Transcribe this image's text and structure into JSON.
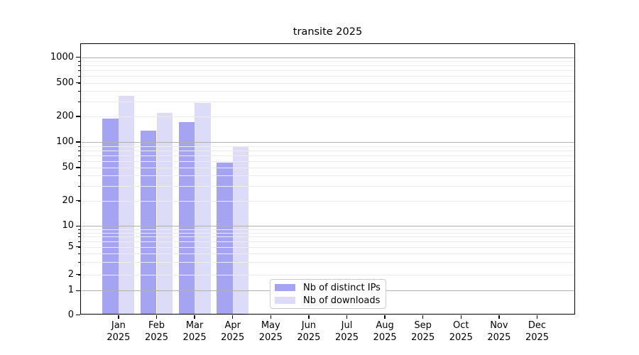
{
  "chart_data": {
    "type": "bar",
    "title": "transite 2025",
    "categories": [
      "Jan",
      "Feb",
      "Mar",
      "Apr",
      "May",
      "Jun",
      "Jul",
      "Aug",
      "Sep",
      "Oct",
      "Nov",
      "Dec"
    ],
    "category_year": "2025",
    "series": [
      {
        "name": "Nb of distinct IPs",
        "color": "#a4a4f2",
        "values": [
          190,
          135,
          170,
          57,
          0,
          0,
          0,
          0,
          0,
          0,
          0,
          0
        ]
      },
      {
        "name": "Nb of downloads",
        "color": "#dcdcf9",
        "values": [
          350,
          220,
          290,
          90,
          0,
          0,
          0,
          0,
          0,
          0,
          0,
          0
        ]
      }
    ],
    "xlabel": "",
    "ylabel": "",
    "yaxis": {
      "scale": "symlog",
      "tick_values": [
        0,
        1,
        2,
        5,
        10,
        20,
        50,
        100,
        200,
        500,
        1000
      ],
      "tick_labels": [
        "0",
        "1",
        "2",
        "5",
        "10",
        "20",
        "50",
        "100",
        "200",
        "500",
        "1000"
      ],
      "ylim": [
        0,
        1470
      ]
    },
    "grid": {
      "enabled": true,
      "major_values": [
        1,
        10,
        100,
        1000
      ],
      "major_color": "#b0b0b0",
      "minor_color": "#ececec"
    },
    "legend": {
      "position": "bottom-center"
    },
    "colors": {
      "axis": "#000000",
      "background": "#ffffff"
    }
  }
}
